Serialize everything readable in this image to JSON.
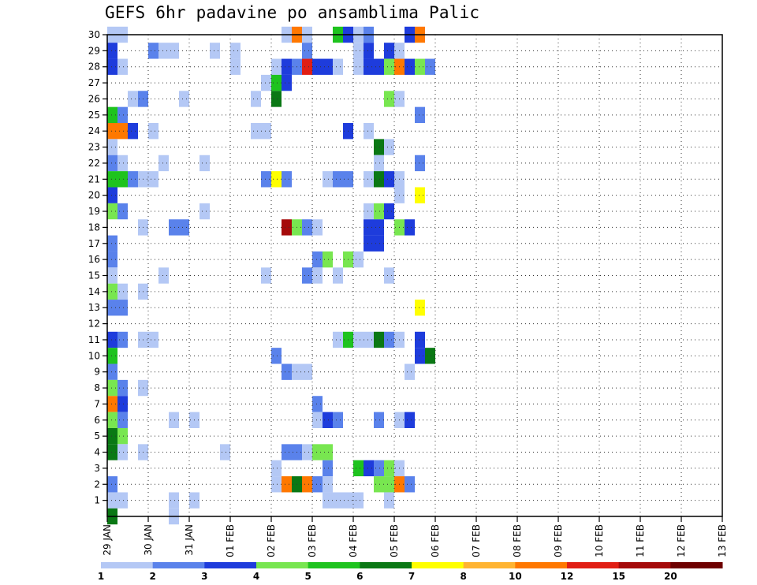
{
  "chart_data": {
    "type": "heatmap",
    "title": "GEFS 6hr padavine po ansamblima Palic",
    "x_labels": [
      "29 JAN",
      "30 JAN",
      "31 JAN",
      "01 FEB",
      "02 FEB",
      "03 FEB",
      "04 FEB",
      "05 FEB",
      "06 FEB",
      "07 FEB",
      "08 FEB",
      "09 FEB",
      "10 FEB",
      "11 FEB",
      "12 FEB",
      "13 FEB"
    ],
    "x_range": [
      0,
      60
    ],
    "y_labels": [
      "1",
      "2",
      "3",
      "4",
      "5",
      "6",
      "7",
      "8",
      "9",
      "10",
      "11",
      "12",
      "13",
      "14",
      "15",
      "16",
      "17",
      "18",
      "19",
      "20",
      "21",
      "22",
      "23",
      "24",
      "25",
      "26",
      "27",
      "28",
      "29",
      "30"
    ],
    "y_range": [
      0,
      30
    ],
    "grid": true,
    "legend": {
      "placement": "bottom",
      "labels": [
        "1",
        "2",
        "3",
        "4",
        "5",
        "6",
        "7",
        "8",
        "10",
        "12",
        "15",
        "20"
      ],
      "colors": [
        "#b4c8f5",
        "#5a82eb",
        "#1e3cdc",
        "#78e650",
        "#1ec31e",
        "#0a7814",
        "#ffff00",
        "#ffb432",
        "#ff7800",
        "#e11e14",
        "#a50a0a",
        "#6e0000"
      ]
    },
    "cells": [
      {
        "member": 30,
        "step": 0,
        "level": 1
      },
      {
        "member": 30,
        "step": 1,
        "level": 1
      },
      {
        "member": 30,
        "step": 17,
        "level": 1
      },
      {
        "member": 30,
        "step": 18,
        "level": 9
      },
      {
        "member": 30,
        "step": 19,
        "level": 1
      },
      {
        "member": 30,
        "step": 22,
        "level": 5
      },
      {
        "member": 30,
        "step": 23,
        "level": 3
      },
      {
        "member": 30,
        "step": 24,
        "level": 1
      },
      {
        "member": 30,
        "step": 25,
        "level": 2
      },
      {
        "member": 30,
        "step": 29,
        "level": 3
      },
      {
        "member": 30,
        "step": 30,
        "level": 9
      },
      {
        "member": 29,
        "step": 0,
        "level": 3
      },
      {
        "member": 29,
        "step": 4,
        "level": 2
      },
      {
        "member": 29,
        "step": 5,
        "level": 1
      },
      {
        "member": 29,
        "step": 6,
        "level": 1
      },
      {
        "member": 29,
        "step": 10,
        "level": 1
      },
      {
        "member": 29,
        "step": 12,
        "level": 1
      },
      {
        "member": 29,
        "step": 19,
        "level": 2
      },
      {
        "member": 29,
        "step": 24,
        "level": 1
      },
      {
        "member": 29,
        "step": 25,
        "level": 3
      },
      {
        "member": 29,
        "step": 27,
        "level": 3
      },
      {
        "member": 29,
        "step": 28,
        "level": 1
      },
      {
        "member": 28,
        "step": 0,
        "level": 3
      },
      {
        "member": 28,
        "step": 1,
        "level": 1
      },
      {
        "member": 28,
        "step": 12,
        "level": 1
      },
      {
        "member": 28,
        "step": 16,
        "level": 1
      },
      {
        "member": 28,
        "step": 17,
        "level": 3
      },
      {
        "member": 28,
        "step": 18,
        "level": 2
      },
      {
        "member": 28,
        "step": 19,
        "level": 10
      },
      {
        "member": 28,
        "step": 20,
        "level": 3
      },
      {
        "member": 28,
        "step": 21,
        "level": 3
      },
      {
        "member": 28,
        "step": 22,
        "level": 1
      },
      {
        "member": 28,
        "step": 24,
        "level": 1
      },
      {
        "member": 28,
        "step": 25,
        "level": 3
      },
      {
        "member": 28,
        "step": 26,
        "level": 3
      },
      {
        "member": 28,
        "step": 27,
        "level": 4
      },
      {
        "member": 28,
        "step": 28,
        "level": 9
      },
      {
        "member": 28,
        "step": 29,
        "level": 3
      },
      {
        "member": 28,
        "step": 30,
        "level": 4
      },
      {
        "member": 28,
        "step": 31,
        "level": 2
      },
      {
        "member": 27,
        "step": 15,
        "level": 1
      },
      {
        "member": 27,
        "step": 16,
        "level": 5
      },
      {
        "member": 27,
        "step": 17,
        "level": 3
      },
      {
        "member": 26,
        "step": 2,
        "level": 1
      },
      {
        "member": 26,
        "step": 3,
        "level": 2
      },
      {
        "member": 26,
        "step": 7,
        "level": 1
      },
      {
        "member": 26,
        "step": 14,
        "level": 1
      },
      {
        "member": 26,
        "step": 16,
        "level": 6
      },
      {
        "member": 26,
        "step": 27,
        "level": 4
      },
      {
        "member": 26,
        "step": 28,
        "level": 1
      },
      {
        "member": 25,
        "step": 0,
        "level": 5
      },
      {
        "member": 25,
        "step": 1,
        "level": 2
      },
      {
        "member": 25,
        "step": 30,
        "level": 2
      },
      {
        "member": 24,
        "step": 0,
        "level": 9
      },
      {
        "member": 24,
        "step": 1,
        "level": 9
      },
      {
        "member": 24,
        "step": 2,
        "level": 3
      },
      {
        "member": 24,
        "step": 4,
        "level": 1
      },
      {
        "member": 24,
        "step": 14,
        "level": 1
      },
      {
        "member": 24,
        "step": 15,
        "level": 1
      },
      {
        "member": 24,
        "step": 23,
        "level": 3
      },
      {
        "member": 24,
        "step": 25,
        "level": 1
      },
      {
        "member": 23,
        "step": 0,
        "level": 1
      },
      {
        "member": 23,
        "step": 26,
        "level": 6
      },
      {
        "member": 23,
        "step": 27,
        "level": 1
      },
      {
        "member": 22,
        "step": 0,
        "level": 2
      },
      {
        "member": 22,
        "step": 1,
        "level": 1
      },
      {
        "member": 22,
        "step": 5,
        "level": 1
      },
      {
        "member": 22,
        "step": 9,
        "level": 1
      },
      {
        "member": 22,
        "step": 26,
        "level": 1
      },
      {
        "member": 22,
        "step": 30,
        "level": 2
      },
      {
        "member": 21,
        "step": 0,
        "level": 5
      },
      {
        "member": 21,
        "step": 1,
        "level": 5
      },
      {
        "member": 21,
        "step": 2,
        "level": 2
      },
      {
        "member": 21,
        "step": 3,
        "level": 1
      },
      {
        "member": 21,
        "step": 4,
        "level": 1
      },
      {
        "member": 21,
        "step": 15,
        "level": 2
      },
      {
        "member": 21,
        "step": 16,
        "level": 7
      },
      {
        "member": 21,
        "step": 17,
        "level": 2
      },
      {
        "member": 21,
        "step": 21,
        "level": 1
      },
      {
        "member": 21,
        "step": 22,
        "level": 2
      },
      {
        "member": 21,
        "step": 23,
        "level": 2
      },
      {
        "member": 21,
        "step": 25,
        "level": 1
      },
      {
        "member": 21,
        "step": 26,
        "level": 6
      },
      {
        "member": 21,
        "step": 27,
        "level": 3
      },
      {
        "member": 21,
        "step": 28,
        "level": 1
      },
      {
        "member": 20,
        "step": 0,
        "level": 3
      },
      {
        "member": 20,
        "step": 28,
        "level": 1
      },
      {
        "member": 20,
        "step": 30,
        "level": 7
      },
      {
        "member": 19,
        "step": 0,
        "level": 4
      },
      {
        "member": 19,
        "step": 1,
        "level": 2
      },
      {
        "member": 19,
        "step": 9,
        "level": 1
      },
      {
        "member": 19,
        "step": 25,
        "level": 1
      },
      {
        "member": 19,
        "step": 26,
        "level": 4
      },
      {
        "member": 19,
        "step": 27,
        "level": 3
      },
      {
        "member": 18,
        "step": 3,
        "level": 1
      },
      {
        "member": 18,
        "step": 6,
        "level": 2
      },
      {
        "member": 18,
        "step": 7,
        "level": 2
      },
      {
        "member": 18,
        "step": 17,
        "level": 11
      },
      {
        "member": 18,
        "step": 18,
        "level": 4
      },
      {
        "member": 18,
        "step": 19,
        "level": 2
      },
      {
        "member": 18,
        "step": 20,
        "level": 1
      },
      {
        "member": 18,
        "step": 25,
        "level": 3
      },
      {
        "member": 18,
        "step": 26,
        "level": 3
      },
      {
        "member": 18,
        "step": 28,
        "level": 4
      },
      {
        "member": 18,
        "step": 29,
        "level": 3
      },
      {
        "member": 17,
        "step": 0,
        "level": 2
      },
      {
        "member": 17,
        "step": 25,
        "level": 3
      },
      {
        "member": 17,
        "step": 26,
        "level": 3
      },
      {
        "member": 16,
        "step": 0,
        "level": 2
      },
      {
        "member": 16,
        "step": 20,
        "level": 2
      },
      {
        "member": 16,
        "step": 21,
        "level": 4
      },
      {
        "member": 16,
        "step": 23,
        "level": 4
      },
      {
        "member": 16,
        "step": 24,
        "level": 1
      },
      {
        "member": 15,
        "step": 0,
        "level": 1
      },
      {
        "member": 15,
        "step": 5,
        "level": 1
      },
      {
        "member": 15,
        "step": 15,
        "level": 1
      },
      {
        "member": 15,
        "step": 19,
        "level": 2
      },
      {
        "member": 15,
        "step": 20,
        "level": 1
      },
      {
        "member": 15,
        "step": 22,
        "level": 1
      },
      {
        "member": 15,
        "step": 27,
        "level": 1
      },
      {
        "member": 14,
        "step": 0,
        "level": 4
      },
      {
        "member": 14,
        "step": 1,
        "level": 1
      },
      {
        "member": 14,
        "step": 3,
        "level": 1
      },
      {
        "member": 13,
        "step": 0,
        "level": 2
      },
      {
        "member": 13,
        "step": 1,
        "level": 2
      },
      {
        "member": 13,
        "step": 30,
        "level": 7
      },
      {
        "member": 11,
        "step": 0,
        "level": 3
      },
      {
        "member": 11,
        "step": 1,
        "level": 2
      },
      {
        "member": 11,
        "step": 3,
        "level": 1
      },
      {
        "member": 11,
        "step": 4,
        "level": 1
      },
      {
        "member": 11,
        "step": 22,
        "level": 1
      },
      {
        "member": 11,
        "step": 23,
        "level": 5
      },
      {
        "member": 11,
        "step": 24,
        "level": 1
      },
      {
        "member": 11,
        "step": 25,
        "level": 1
      },
      {
        "member": 11,
        "step": 26,
        "level": 6
      },
      {
        "member": 11,
        "step": 27,
        "level": 2
      },
      {
        "member": 11,
        "step": 28,
        "level": 1
      },
      {
        "member": 11,
        "step": 30,
        "level": 3
      },
      {
        "member": 10,
        "step": 0,
        "level": 5
      },
      {
        "member": 10,
        "step": 16,
        "level": 2
      },
      {
        "member": 10,
        "step": 30,
        "level": 3
      },
      {
        "member": 10,
        "step": 31,
        "level": 6
      },
      {
        "member": 9,
        "step": 0,
        "level": 2
      },
      {
        "member": 9,
        "step": 17,
        "level": 2
      },
      {
        "member": 9,
        "step": 18,
        "level": 1
      },
      {
        "member": 9,
        "step": 19,
        "level": 1
      },
      {
        "member": 9,
        "step": 29,
        "level": 1
      },
      {
        "member": 8,
        "step": 0,
        "level": 4
      },
      {
        "member": 8,
        "step": 1,
        "level": 2
      },
      {
        "member": 8,
        "step": 3,
        "level": 1
      },
      {
        "member": 7,
        "step": 0,
        "level": 9
      },
      {
        "member": 7,
        "step": 1,
        "level": 3
      },
      {
        "member": 7,
        "step": 20,
        "level": 2
      },
      {
        "member": 6,
        "step": 0,
        "level": 4
      },
      {
        "member": 6,
        "step": 1,
        "level": 2
      },
      {
        "member": 6,
        "step": 6,
        "level": 1
      },
      {
        "member": 6,
        "step": 8,
        "level": 1
      },
      {
        "member": 6,
        "step": 20,
        "level": 1
      },
      {
        "member": 6,
        "step": 21,
        "level": 3
      },
      {
        "member": 6,
        "step": 22,
        "level": 2
      },
      {
        "member": 6,
        "step": 26,
        "level": 2
      },
      {
        "member": 6,
        "step": 28,
        "level": 1
      },
      {
        "member": 6,
        "step": 29,
        "level": 3
      },
      {
        "member": 5,
        "step": 0,
        "level": 6
      },
      {
        "member": 5,
        "step": 1,
        "level": 4
      },
      {
        "member": 4,
        "step": 0,
        "level": 6
      },
      {
        "member": 4,
        "step": 1,
        "level": 1
      },
      {
        "member": 4,
        "step": 3,
        "level": 1
      },
      {
        "member": 4,
        "step": 11,
        "level": 1
      },
      {
        "member": 4,
        "step": 17,
        "level": 2
      },
      {
        "member": 4,
        "step": 18,
        "level": 2
      },
      {
        "member": 4,
        "step": 19,
        "level": 1
      },
      {
        "member": 4,
        "step": 20,
        "level": 4
      },
      {
        "member": 4,
        "step": 21,
        "level": 4
      },
      {
        "member": 3,
        "step": 16,
        "level": 1
      },
      {
        "member": 3,
        "step": 21,
        "level": 2
      },
      {
        "member": 3,
        "step": 24,
        "level": 5
      },
      {
        "member": 3,
        "step": 25,
        "level": 3
      },
      {
        "member": 3,
        "step": 26,
        "level": 2
      },
      {
        "member": 3,
        "step": 27,
        "level": 4
      },
      {
        "member": 3,
        "step": 28,
        "level": 1
      },
      {
        "member": 2,
        "step": 0,
        "level": 2
      },
      {
        "member": 2,
        "step": 16,
        "level": 1
      },
      {
        "member": 2,
        "step": 17,
        "level": 9
      },
      {
        "member": 2,
        "step": 18,
        "level": 6
      },
      {
        "member": 2,
        "step": 19,
        "level": 9
      },
      {
        "member": 2,
        "step": 20,
        "level": 2
      },
      {
        "member": 2,
        "step": 21,
        "level": 1
      },
      {
        "member": 2,
        "step": 26,
        "level": 4
      },
      {
        "member": 2,
        "step": 27,
        "level": 4
      },
      {
        "member": 2,
        "step": 28,
        "level": 9
      },
      {
        "member": 2,
        "step": 29,
        "level": 2
      },
      {
        "member": 1,
        "step": 0,
        "level": 1
      },
      {
        "member": 1,
        "step": 1,
        "level": 1
      },
      {
        "member": 1,
        "step": 6,
        "level": 1
      },
      {
        "member": 1,
        "step": 8,
        "level": 1
      },
      {
        "member": 1,
        "step": 21,
        "level": 1
      },
      {
        "member": 1,
        "step": 22,
        "level": 1
      },
      {
        "member": 1,
        "step": 23,
        "level": 1
      },
      {
        "member": 1,
        "step": 24,
        "level": 1
      },
      {
        "member": 1,
        "step": 27,
        "level": 1
      },
      {
        "member": 0,
        "step": 0,
        "level": 6
      },
      {
        "member": 0,
        "step": 6,
        "level": 1
      }
    ]
  }
}
